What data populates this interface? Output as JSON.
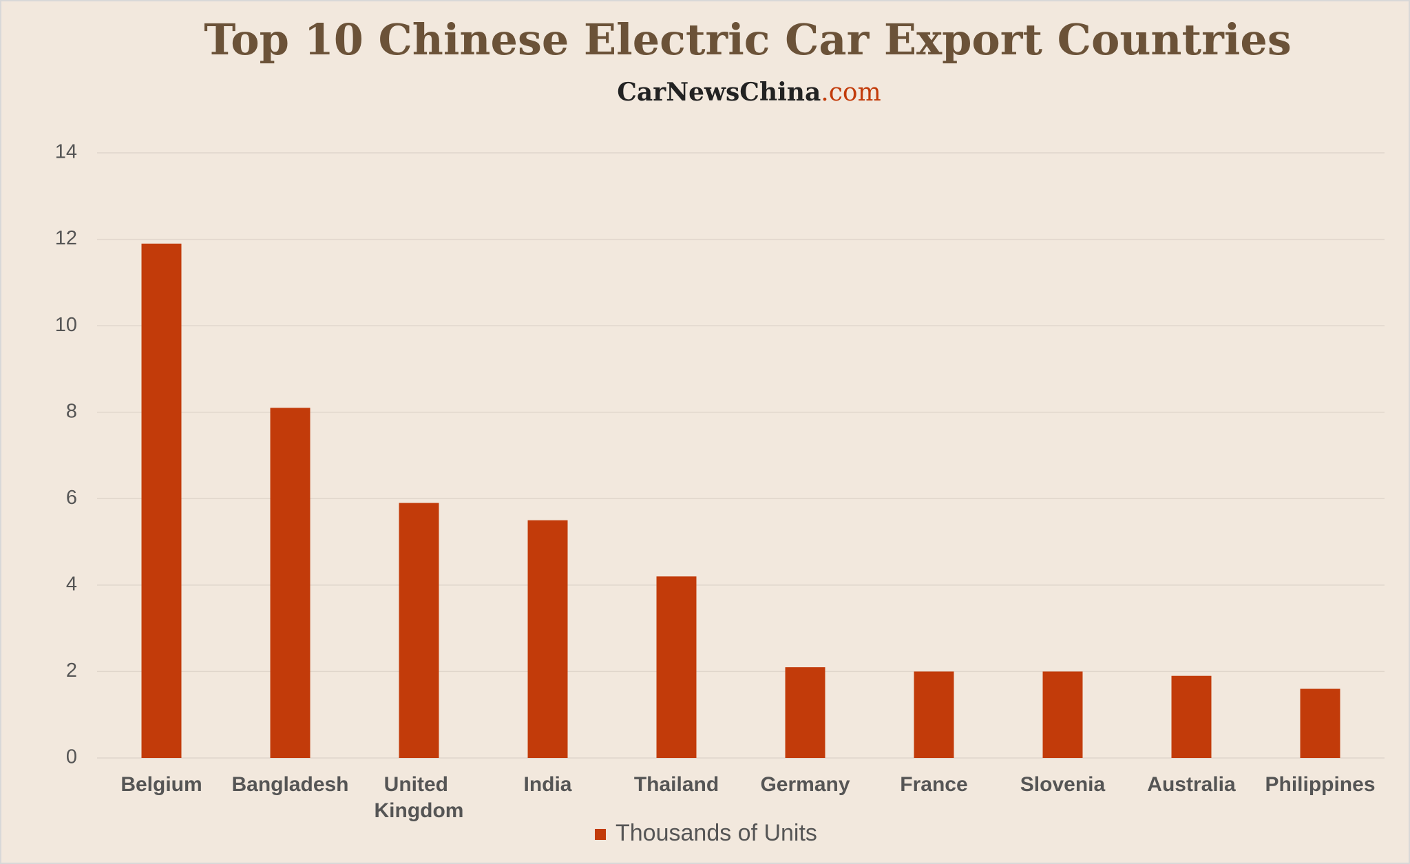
{
  "chart_data": {
    "type": "bar",
    "title": "Top 10 Chinese Electric Car Export Countries",
    "subtitle": [
      "CarNewsChina",
      ".com"
    ],
    "categories": [
      "Belgium",
      "Bangladesh",
      "United Kingdom",
      "India",
      "Thailand",
      "Germany",
      "France",
      "Slovenia",
      "Australia",
      "Philippines"
    ],
    "series": [
      {
        "name": "Thousands of Units",
        "color": "#c23b0a",
        "values": [
          11.9,
          8.1,
          5.9,
          5.5,
          4.2,
          2.1,
          2.0,
          2.0,
          1.9,
          1.6
        ]
      }
    ],
    "ylim": [
      0,
      14
    ],
    "yticks": [
      0,
      2,
      4,
      6,
      8,
      10,
      12,
      14
    ],
    "grid": true,
    "legend": "bottom"
  }
}
